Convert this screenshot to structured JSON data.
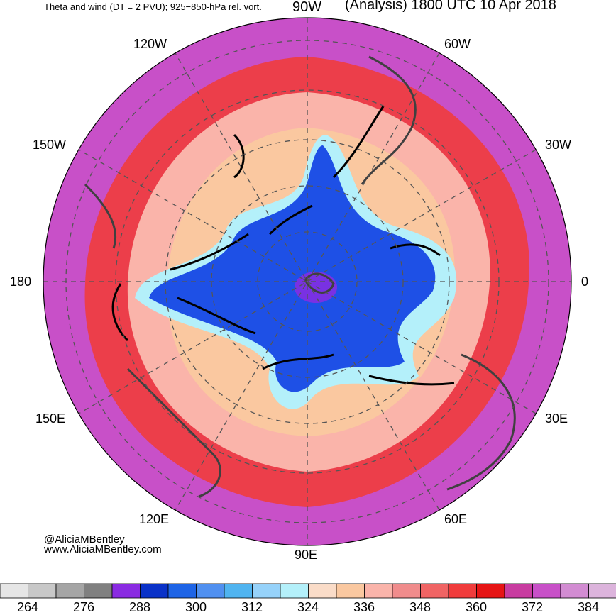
{
  "header": {
    "subtitle": "Theta and wind (DT = 2 PVU); 925−850-hPa rel. vort.",
    "title": "(Analysis) 1800 UTC 10 Apr 2018"
  },
  "longitude_labels": {
    "w90": "90W",
    "w60": "60W",
    "w30": "30W",
    "e0": "0",
    "e30": "30E",
    "e60": "60E",
    "e90": "90E",
    "e120": "120E",
    "e150": "150E",
    "d180": "180",
    "w150": "150W",
    "w120": "120W"
  },
  "credits": {
    "handle": "@AliciaMBentley",
    "website": "www.AliciaMBentley.com"
  },
  "colorbar": {
    "colors": [
      "#e6e6e6",
      "#c8c8c8",
      "#a5a5a5",
      "#808080",
      "#8a2be2",
      "#0a32c8",
      "#1e64e6",
      "#5090f0",
      "#50b4f0",
      "#96d2fa",
      "#b4f0fa",
      "#fadcc8",
      "#fac8a0",
      "#fab4aa",
      "#f08c8c",
      "#f06464",
      "#f03c3c",
      "#e61414",
      "#c83ca0",
      "#c850c8",
      "#d28cd2",
      "#dcb4dc"
    ],
    "tick_labels": [
      "264",
      "276",
      "288",
      "300",
      "312",
      "324",
      "336",
      "348",
      "360",
      "372",
      "384"
    ]
  },
  "field": {
    "core_color": "#1e50e6",
    "inner_color": "#8a2be2",
    "halo_color": "#b4f0fa",
    "mid_color": "#fac8a0",
    "ring_color": "#f03c3c",
    "outer_color": "#c850c8",
    "grid_color": "#555555",
    "coast_color": "#404040"
  }
}
